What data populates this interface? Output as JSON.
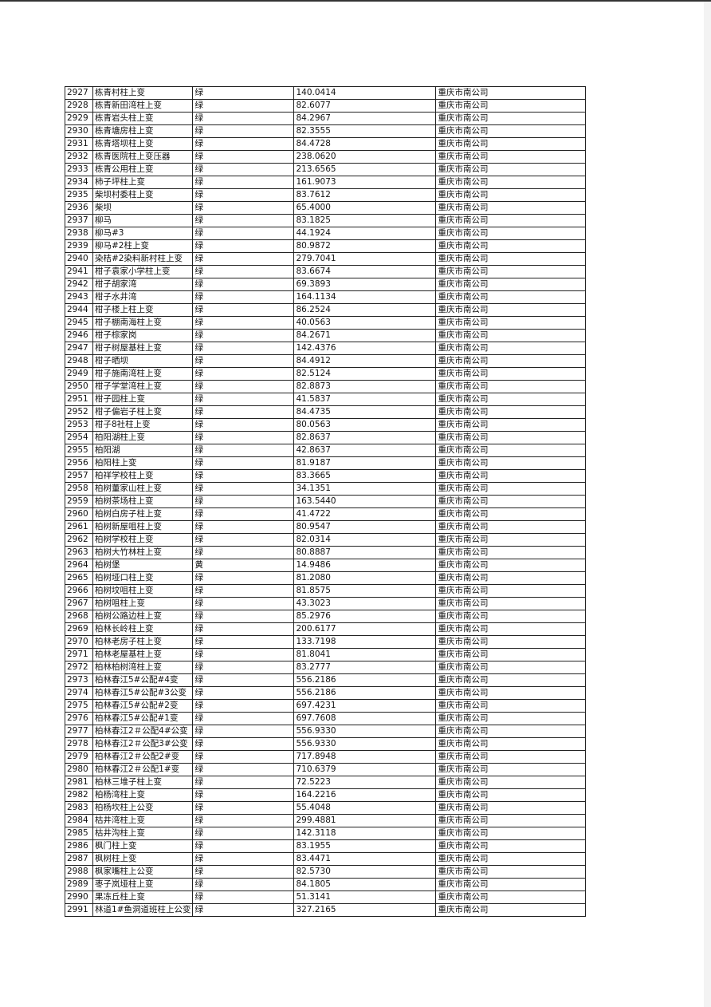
{
  "table": {
    "rows": [
      [
        "2927",
        "栋青村柱上变",
        "绿",
        "140.0414",
        "重庆市南公司"
      ],
      [
        "2928",
        "栋青新田湾柱上变",
        "绿",
        "82.6077",
        "重庆市南公司"
      ],
      [
        "2929",
        "栋青岩头柱上变",
        "绿",
        "84.2967",
        "重庆市南公司"
      ],
      [
        "2930",
        "栋青塘房柱上变",
        "绿",
        "82.3555",
        "重庆市南公司"
      ],
      [
        "2931",
        "栋青塔坝柱上变",
        "绿",
        "84.4728",
        "重庆市南公司"
      ],
      [
        "2932",
        "栋青医院柱上变压器",
        "绿",
        "238.0620",
        "重庆市南公司"
      ],
      [
        "2933",
        "栋青公用柱上变",
        "绿",
        "213.6565",
        "重庆市南公司"
      ],
      [
        "2934",
        "柿子坪柱上变",
        "绿",
        "161.9073",
        "重庆市南公司"
      ],
      [
        "2935",
        "柴坝村委柱上变",
        "绿",
        "83.7612",
        "重庆市南公司"
      ],
      [
        "2936",
        "柴坝",
        "绿",
        "65.4000",
        "重庆市南公司"
      ],
      [
        "2937",
        "柳马",
        "绿",
        "83.1825",
        "重庆市南公司"
      ],
      [
        "2938",
        "柳马#3",
        "绿",
        "44.1924",
        "重庆市南公司"
      ],
      [
        "2939",
        "柳马#2柱上变",
        "绿",
        "80.9872",
        "重庆市南公司"
      ],
      [
        "2940",
        "染桔#2染料新村柱上变",
        "绿",
        "279.7041",
        "重庆市南公司"
      ],
      [
        "2941",
        "柑子袁家小学柱上变",
        "绿",
        "83.6674",
        "重庆市南公司"
      ],
      [
        "2942",
        "柑子胡家湾",
        "绿",
        "69.3893",
        "重庆市南公司"
      ],
      [
        "2943",
        "柑子水井湾",
        "绿",
        "164.1134",
        "重庆市南公司"
      ],
      [
        "2944",
        "柑子楼上柱上变",
        "绿",
        "86.2524",
        "重庆市南公司"
      ],
      [
        "2945",
        "柑子棚南海柱上变",
        "绿",
        "40.0563",
        "重庆市南公司"
      ],
      [
        "2946",
        "柑子棕家岗",
        "绿",
        "84.2671",
        "重庆市南公司"
      ],
      [
        "2947",
        "柑子树屋基柱上变",
        "绿",
        "142.4376",
        "重庆市南公司"
      ],
      [
        "2948",
        "柑子晒坝",
        "绿",
        "84.4912",
        "重庆市南公司"
      ],
      [
        "2949",
        "柑子施南湾柱上变",
        "绿",
        "82.5124",
        "重庆市南公司"
      ],
      [
        "2950",
        "柑子学堂湾柱上变",
        "绿",
        "82.8873",
        "重庆市南公司"
      ],
      [
        "2951",
        "柑子园柱上变",
        "绿",
        "41.5837",
        "重庆市南公司"
      ],
      [
        "2952",
        "柑子偏岩子柱上变",
        "绿",
        "84.4735",
        "重庆市南公司"
      ],
      [
        "2953",
        "柑子8社柱上变",
        "绿",
        "80.0563",
        "重庆市南公司"
      ],
      [
        "2954",
        "柏阳湖柱上变",
        "绿",
        "82.8637",
        "重庆市南公司"
      ],
      [
        "2955",
        "柏阳湖",
        "绿",
        "42.8637",
        "重庆市南公司"
      ],
      [
        "2956",
        "柏阳柱上变",
        "绿",
        "81.9187",
        "重庆市南公司"
      ],
      [
        "2957",
        "柏祥学校柱上变",
        "绿",
        "83.3665",
        "重庆市南公司"
      ],
      [
        "2958",
        "柏树董家山柱上变",
        "绿",
        "34.1351",
        "重庆市南公司"
      ],
      [
        "2959",
        "柏树茶场柱上变",
        "绿",
        "163.5440",
        "重庆市南公司"
      ],
      [
        "2960",
        "柏树白房子柱上变",
        "绿",
        "41.4722",
        "重庆市南公司"
      ],
      [
        "2961",
        "柏树新屋咀柱上变",
        "绿",
        "80.9547",
        "重庆市南公司"
      ],
      [
        "2962",
        "柏树学校柱上变",
        "绿",
        "82.0314",
        "重庆市南公司"
      ],
      [
        "2963",
        "柏树大竹林柱上变",
        "绿",
        "80.8887",
        "重庆市南公司"
      ],
      [
        "2964",
        "柏树堡",
        "黄",
        "14.9486",
        "重庆市南公司"
      ],
      [
        "2965",
        "柏树垭口柱上变",
        "绿",
        "81.2080",
        "重庆市南公司"
      ],
      [
        "2966",
        "柏树坟咀柱上变",
        "绿",
        "81.8575",
        "重庆市南公司"
      ],
      [
        "2967",
        "柏树咀柱上变",
        "绿",
        "43.3023",
        "重庆市南公司"
      ],
      [
        "2968",
        "柏树公路边柱上变",
        "绿",
        "85.2976",
        "重庆市南公司"
      ],
      [
        "2969",
        "柏林长岭柱上变",
        "绿",
        "200.6177",
        "重庆市南公司"
      ],
      [
        "2970",
        "柏林老房子柱上变",
        "绿",
        "133.7198",
        "重庆市南公司"
      ],
      [
        "2971",
        "柏林老屋基柱上变",
        "绿",
        "81.8041",
        "重庆市南公司"
      ],
      [
        "2972",
        "柏林柏树湾柱上变",
        "绿",
        "83.2777",
        "重庆市南公司"
      ],
      [
        "2973",
        "柏林春江5#公配#4变",
        "绿",
        "556.2186",
        "重庆市南公司"
      ],
      [
        "2974",
        "柏林春江5#公配#3公变",
        "绿",
        "556.2186",
        "重庆市南公司"
      ],
      [
        "2975",
        "柏林春江5#公配#2变",
        "绿",
        "697.4231",
        "重庆市南公司"
      ],
      [
        "2976",
        "柏林春江5#公配#1变",
        "绿",
        "697.7608",
        "重庆市南公司"
      ],
      [
        "2977",
        "柏林春江2＃公配4#公变",
        "绿",
        "556.9330",
        "重庆市南公司"
      ],
      [
        "2978",
        "柏林春江2＃公配3#公变",
        "绿",
        "556.9330",
        "重庆市南公司"
      ],
      [
        "2979",
        "柏林春江2＃公配2#变",
        "绿",
        "717.8948",
        "重庆市南公司"
      ],
      [
        "2980",
        "柏林春江2＃公配1#变",
        "绿",
        "710.6379",
        "重庆市南公司"
      ],
      [
        "2981",
        "柏林三堆子柱上变",
        "绿",
        "72.5223",
        "重庆市南公司"
      ],
      [
        "2982",
        "柏杨湾柱上变",
        "绿",
        "164.2216",
        "重庆市南公司"
      ],
      [
        "2983",
        "柏杨坎柱上公变",
        "绿",
        "55.4048",
        "重庆市南公司"
      ],
      [
        "2984",
        "枯井湾柱上变",
        "绿",
        "299.4881",
        "重庆市南公司"
      ],
      [
        "2985",
        "枯井沟柱上变",
        "绿",
        "142.3118",
        "重庆市南公司"
      ],
      [
        "2986",
        "枫门柱上变",
        "绿",
        "83.1955",
        "重庆市南公司"
      ],
      [
        "2987",
        "枫树柱上变",
        "绿",
        "83.4471",
        "重庆市南公司"
      ],
      [
        "2988",
        "枫家嘴柱上公变",
        "绿",
        "82.5730",
        "重庆市南公司"
      ],
      [
        "2989",
        "枣子岚垭柱上变",
        "绿",
        "84.1805",
        "重庆市南公司"
      ],
      [
        "2990",
        "果冻丘柱上变",
        "绿",
        "51.3141",
        "重庆市南公司"
      ],
      [
        "2991",
        "林道1#鱼洞道班柱上公变",
        "绿",
        "327.2165",
        "重庆市南公司"
      ]
    ]
  }
}
